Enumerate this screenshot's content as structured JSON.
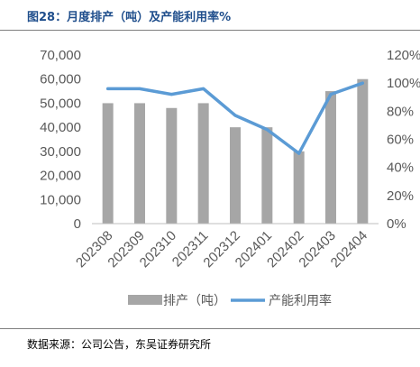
{
  "header": {
    "title": "图28：月度排产（吨）及产能利用率%"
  },
  "footer": {
    "source": "数据来源：公司公告，东吴证券研究所"
  },
  "chart_data": {
    "type": "bar",
    "title": "图28：月度排产（吨）及产能利用率%",
    "categories": [
      "202308",
      "202309",
      "202310",
      "202311",
      "202312",
      "202401",
      "202402",
      "202403",
      "202404"
    ],
    "series": [
      {
        "name": "排产（吨）",
        "type": "bar",
        "axis": "left",
        "color": "#a6a6a6",
        "values": [
          50000,
          50000,
          48000,
          50000,
          40000,
          40000,
          30000,
          55000,
          60000
        ]
      },
      {
        "name": "产能利用率",
        "type": "line",
        "axis": "right",
        "color": "#5b9bd5",
        "values": [
          0.96,
          0.96,
          0.92,
          0.96,
          0.77,
          0.67,
          0.5,
          0.92,
          1.0
        ]
      }
    ],
    "left_axis": {
      "min": 0,
      "max": 70000,
      "step": 10000,
      "tick_labels": [
        "0",
        "10,000",
        "20,000",
        "30,000",
        "40,000",
        "50,000",
        "60,000",
        "70,000"
      ]
    },
    "right_axis": {
      "min": 0,
      "max": 1.2,
      "step": 0.2,
      "tick_labels": [
        "0%",
        "20%",
        "40%",
        "60%",
        "80%",
        "100%",
        "120%"
      ]
    },
    "grid": false,
    "legend": {
      "placement": "bottom",
      "entries": [
        "排产（吨）",
        "产能利用率"
      ]
    }
  }
}
